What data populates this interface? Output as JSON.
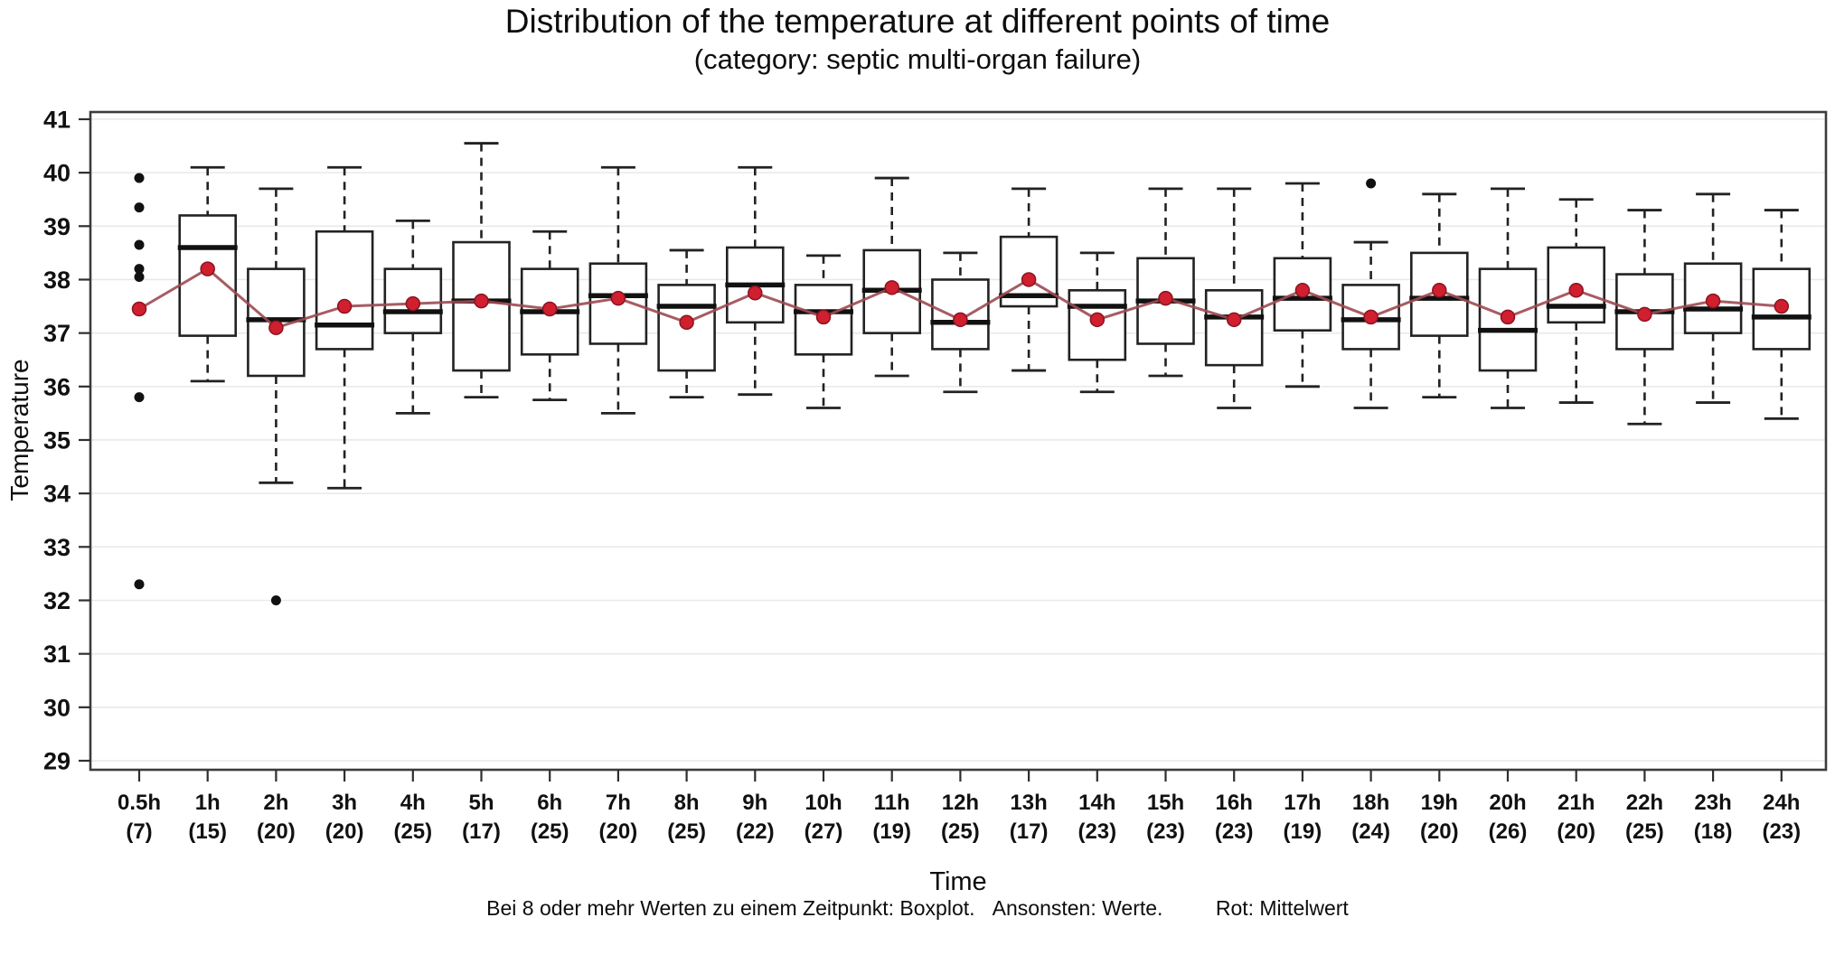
{
  "chart_data": {
    "type": "boxplot",
    "title": "Distribution of the temperature at different points of time",
    "subtitle": "(category: septic multi-organ failure)",
    "xlabel": "Time",
    "ylabel": "Temperature",
    "ylim": [
      29,
      41
    ],
    "yticks": [
      29,
      30,
      31,
      32,
      33,
      34,
      35,
      36,
      37,
      38,
      39,
      40,
      41
    ],
    "grid": true,
    "legend_note": {
      "boxplot_rule": "Bei 8 oder mehr Werten zu einem Zeitpunkt: Boxplot.",
      "werte_rule": "Ansonsten: Werte.",
      "rot_rule": "Rot: Mittelwert"
    },
    "colors": {
      "mean": "#d01f2f",
      "mean_dark": "#8a1420",
      "mean_line": "#9c4a52",
      "box": "#222222",
      "axis": "#2e2e2e",
      "frame": "#3c3c3c",
      "grid": "#e9e9e9",
      "dot": "#111111",
      "background": "#ffffff"
    },
    "columns": [
      {
        "label": "0.5h",
        "count": 7,
        "type": "points",
        "values": [
          39.9,
          39.35,
          38.65,
          38.2,
          38.05,
          35.8,
          32.3
        ],
        "mean": 37.45
      },
      {
        "label": "1h",
        "count": 15,
        "type": "box",
        "low": 36.1,
        "q1": 36.95,
        "median": 38.6,
        "q3": 39.2,
        "high": 40.1,
        "mean": 38.2,
        "outliers": []
      },
      {
        "label": "2h",
        "count": 20,
        "type": "box",
        "low": 34.2,
        "q1": 36.2,
        "median": 37.25,
        "q3": 38.2,
        "high": 39.7,
        "mean": 37.1,
        "outliers": [
          32.0
        ]
      },
      {
        "label": "3h",
        "count": 20,
        "type": "box",
        "low": 34.1,
        "q1": 36.7,
        "median": 37.15,
        "q3": 38.9,
        "high": 40.1,
        "mean": 37.5,
        "outliers": []
      },
      {
        "label": "4h",
        "count": 25,
        "type": "box",
        "low": 35.5,
        "q1": 37.0,
        "median": 37.4,
        "q3": 38.2,
        "high": 39.1,
        "mean": 37.55,
        "outliers": []
      },
      {
        "label": "5h",
        "count": 17,
        "type": "box",
        "low": 35.8,
        "q1": 36.3,
        "median": 37.6,
        "q3": 38.7,
        "high": 40.55,
        "mean": 37.6,
        "outliers": []
      },
      {
        "label": "6h",
        "count": 25,
        "type": "box",
        "low": 35.75,
        "q1": 36.6,
        "median": 37.4,
        "q3": 38.2,
        "high": 38.9,
        "mean": 37.45,
        "outliers": []
      },
      {
        "label": "7h",
        "count": 20,
        "type": "box",
        "low": 35.5,
        "q1": 36.8,
        "median": 37.7,
        "q3": 38.3,
        "high": 40.1,
        "mean": 37.65,
        "outliers": []
      },
      {
        "label": "8h",
        "count": 25,
        "type": "box",
        "low": 35.8,
        "q1": 36.3,
        "median": 37.5,
        "q3": 37.9,
        "high": 38.55,
        "mean": 37.2,
        "outliers": []
      },
      {
        "label": "9h",
        "count": 22,
        "type": "box",
        "low": 35.85,
        "q1": 37.2,
        "median": 37.9,
        "q3": 38.6,
        "high": 40.1,
        "mean": 37.75,
        "outliers": []
      },
      {
        "label": "10h",
        "count": 27,
        "type": "box",
        "low": 35.6,
        "q1": 36.6,
        "median": 37.4,
        "q3": 37.9,
        "high": 38.45,
        "mean": 37.3,
        "outliers": []
      },
      {
        "label": "11h",
        "count": 19,
        "type": "box",
        "low": 36.2,
        "q1": 37.0,
        "median": 37.8,
        "q3": 38.55,
        "high": 39.9,
        "mean": 37.85,
        "outliers": []
      },
      {
        "label": "12h",
        "count": 25,
        "type": "box",
        "low": 35.9,
        "q1": 36.7,
        "median": 37.2,
        "q3": 38.0,
        "high": 38.5,
        "mean": 37.25,
        "outliers": []
      },
      {
        "label": "13h",
        "count": 17,
        "type": "box",
        "low": 36.3,
        "q1": 37.5,
        "median": 37.7,
        "q3": 38.8,
        "high": 39.7,
        "mean": 38.0,
        "outliers": []
      },
      {
        "label": "14h",
        "count": 23,
        "type": "box",
        "low": 35.9,
        "q1": 36.5,
        "median": 37.5,
        "q3": 37.8,
        "high": 38.5,
        "mean": 37.25,
        "outliers": []
      },
      {
        "label": "15h",
        "count": 23,
        "type": "box",
        "low": 36.2,
        "q1": 36.8,
        "median": 37.6,
        "q3": 38.4,
        "high": 39.7,
        "mean": 37.65,
        "outliers": []
      },
      {
        "label": "16h",
        "count": 23,
        "type": "box",
        "low": 35.6,
        "q1": 36.4,
        "median": 37.3,
        "q3": 37.8,
        "high": 39.7,
        "mean": 37.25,
        "outliers": []
      },
      {
        "label": "17h",
        "count": 19,
        "type": "box",
        "low": 36.0,
        "q1": 37.05,
        "median": 37.65,
        "q3": 38.4,
        "high": 39.8,
        "mean": 37.8,
        "outliers": []
      },
      {
        "label": "18h",
        "count": 24,
        "type": "box",
        "low": 35.6,
        "q1": 36.7,
        "median": 37.25,
        "q3": 37.9,
        "high": 38.7,
        "mean": 37.3,
        "outliers": [
          39.8
        ]
      },
      {
        "label": "19h",
        "count": 20,
        "type": "box",
        "low": 35.8,
        "q1": 36.95,
        "median": 37.65,
        "q3": 38.5,
        "high": 39.6,
        "mean": 37.8,
        "outliers": []
      },
      {
        "label": "20h",
        "count": 26,
        "type": "box",
        "low": 35.6,
        "q1": 36.3,
        "median": 37.05,
        "q3": 38.2,
        "high": 39.7,
        "mean": 37.3,
        "outliers": []
      },
      {
        "label": "21h",
        "count": 20,
        "type": "box",
        "low": 35.7,
        "q1": 37.2,
        "median": 37.5,
        "q3": 38.6,
        "high": 39.5,
        "mean": 37.8,
        "outliers": []
      },
      {
        "label": "22h",
        "count": 25,
        "type": "box",
        "low": 35.3,
        "q1": 36.7,
        "median": 37.4,
        "q3": 38.1,
        "high": 39.3,
        "mean": 37.35,
        "outliers": []
      },
      {
        "label": "23h",
        "count": 18,
        "type": "box",
        "low": 35.7,
        "q1": 37.0,
        "median": 37.45,
        "q3": 38.3,
        "high": 39.6,
        "mean": 37.6,
        "outliers": []
      },
      {
        "label": "24h",
        "count": 23,
        "type": "box",
        "low": 35.4,
        "q1": 36.7,
        "median": 37.3,
        "q3": 38.2,
        "high": 39.3,
        "mean": 37.5,
        "outliers": []
      }
    ]
  }
}
